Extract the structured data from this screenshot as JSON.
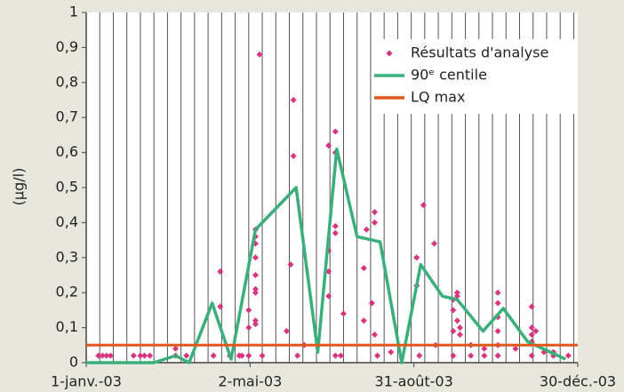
{
  "chart_data": {
    "type": "combo",
    "ylabel": "(µg/l)",
    "ylim": [
      0,
      1
    ],
    "yticks": [
      0,
      {
        "value": 0.1,
        "label": "0,1"
      },
      {
        "value": 0.2,
        "label": "0,2"
      },
      {
        "value": 0.3,
        "label": "0,3"
      },
      {
        "value": 0.4,
        "label": "0,4"
      },
      {
        "value": 0.5,
        "label": "0,5"
      },
      {
        "value": 0.6,
        "label": "0,6"
      },
      {
        "value": 0.7,
        "label": "0,7"
      },
      {
        "value": 0.8,
        "label": "0,8"
      },
      {
        "value": 0.9,
        "label": "0,9"
      },
      1
    ],
    "xlim": [
      "2003-01-01",
      "2003-12-30"
    ],
    "xticks": [
      {
        "value": "2003-01-01",
        "label": "1-janv.-03"
      },
      {
        "value": "2003-05-02",
        "label": "2-mai-03"
      },
      {
        "value": "2003-08-31",
        "label": "31-août-03"
      },
      {
        "value": "2003-12-30",
        "label": "30-déc.-03"
      }
    ],
    "xgrid_step_days": 10,
    "legend": "upper right",
    "series": [
      {
        "name": "Résultats d'analyse",
        "type": "scatter",
        "color": "#d8347f",
        "x": [
          "2003-01-10",
          "2003-01-13",
          "2003-01-16",
          "2003-01-19",
          "2003-02-05",
          "2003-02-10",
          "2003-02-13",
          "2003-02-17",
          "2003-03-08",
          "2003-03-08",
          "2003-03-16",
          "2003-04-05",
          "2003-04-10",
          "2003-04-10",
          "2003-04-17",
          "2003-04-24",
          "2003-04-26",
          "2003-05-01",
          "2003-05-01",
          "2003-05-01",
          "2003-05-06",
          "2003-05-06",
          "2003-05-06",
          "2003-05-06",
          "2003-05-06",
          "2003-05-06",
          "2003-05-06",
          "2003-05-06",
          "2003-05-06",
          "2003-05-09",
          "2003-05-11",
          "2003-05-29",
          "2003-06-01",
          "2003-06-03",
          "2003-06-03",
          "2003-06-06",
          "2003-06-11",
          "2003-06-29",
          "2003-06-29",
          "2003-06-29",
          "2003-06-29",
          "2003-07-04",
          "2003-07-04",
          "2003-07-04",
          "2003-07-04",
          "2003-07-04",
          "2003-07-08",
          "2003-07-10",
          "2003-07-25",
          "2003-07-25",
          "2003-07-27",
          "2003-07-31",
          "2003-08-02",
          "2003-08-02",
          "2003-08-02",
          "2003-08-04",
          "2003-08-14",
          "2003-09-02",
          "2003-09-02",
          "2003-09-04",
          "2003-09-07",
          "2003-09-15",
          "2003-09-16",
          "2003-09-29",
          "2003-09-29",
          "2003-09-29",
          "2003-09-29",
          "2003-10-02",
          "2003-10-02",
          "2003-10-02",
          "2003-10-04",
          "2003-10-04",
          "2003-10-12",
          "2003-10-12",
          "2003-10-22",
          "2003-10-22",
          "2003-11-01",
          "2003-11-01",
          "2003-11-01",
          "2003-11-01",
          "2003-11-01",
          "2003-11-01",
          "2003-11-14",
          "2003-11-26",
          "2003-11-26",
          "2003-11-26",
          "2003-11-26",
          "2003-11-26",
          "2003-11-29",
          "2003-12-05",
          "2003-12-12",
          "2003-12-12",
          "2003-12-23"
        ],
        "values": [
          0.02,
          0.02,
          0.02,
          0.02,
          0.02,
          0.02,
          0.02,
          0.02,
          0.04,
          0.02,
          0.02,
          0.02,
          0.26,
          0.16,
          0.02,
          0.02,
          0.02,
          0.15,
          0.1,
          0.02,
          0.38,
          0.36,
          0.34,
          0.3,
          0.25,
          0.21,
          0.2,
          0.12,
          0.11,
          0.88,
          0.02,
          0.09,
          0.28,
          0.75,
          0.59,
          0.02,
          0.05,
          0.62,
          0.32,
          0.26,
          0.19,
          0.66,
          0.6,
          0.39,
          0.37,
          0.02,
          0.02,
          0.14,
          0.27,
          0.12,
          0.38,
          0.17,
          0.43,
          0.4,
          0.08,
          0.02,
          0.03,
          0.3,
          0.22,
          0.02,
          0.45,
          0.34,
          0.05,
          0.18,
          0.15,
          0.09,
          0.02,
          0.2,
          0.19,
          0.12,
          0.1,
          0.08,
          0.05,
          0.02,
          0.04,
          0.02,
          0.2,
          0.17,
          0.13,
          0.09,
          0.05,
          0.02,
          0.04,
          0.16,
          0.1,
          0.08,
          0.06,
          0.02,
          0.09,
          0.03,
          0.03,
          0.02,
          0.02
        ]
      },
      {
        "name": "90ᵉ centile",
        "type": "line",
        "color": "#3aaf7a",
        "x": [
          "2003-01-01",
          "2003-02-20",
          "2003-03-08",
          "2003-03-18",
          "2003-04-04",
          "2003-04-18",
          "2003-05-06",
          "2003-06-05",
          "2003-06-21",
          "2003-07-05",
          "2003-07-20",
          "2003-08-06",
          "2003-08-22",
          "2003-09-05",
          "2003-09-21",
          "2003-10-02",
          "2003-10-21",
          "2003-11-05",
          "2003-11-23",
          "2003-12-21"
        ],
        "values": [
          0,
          0,
          0.02,
          0,
          0.17,
          0.01,
          0.38,
          0.5,
          0.03,
          0.61,
          0.36,
          0.345,
          0,
          0.28,
          0.19,
          0.18,
          0.09,
          0.155,
          0.06,
          0.01
        ]
      },
      {
        "name": "LQ max",
        "type": "hline",
        "color": "#e2571c",
        "value": 0.05
      }
    ]
  }
}
